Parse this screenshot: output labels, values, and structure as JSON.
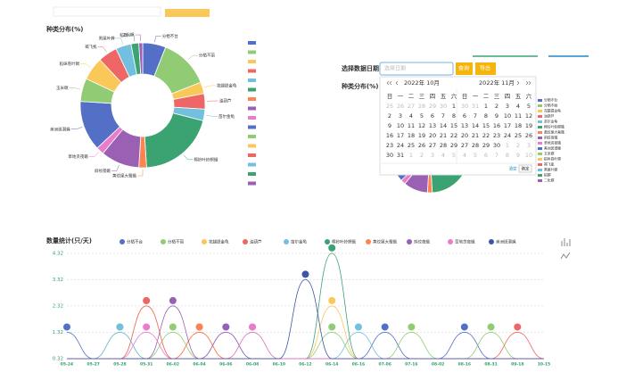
{
  "chart_data": [
    {
      "type": "donut",
      "title": "种类分布(%)",
      "categories": [
        "分栖不台",
        "分栖不丽",
        "花腿提金龟",
        "油葫芦",
        "苗尔金龟",
        "棉铃叶蛉螟蛾",
        "黄纹尾大蚕蛾",
        "斜纹夜蛾",
        "草地贪夜蛾",
        "美洲斑潜蝇",
        "玉米螟",
        "稻纵卷叶螟",
        "褐飞虱",
        "黑尾叶蝉",
        "稻螟",
        "二化螟"
      ],
      "values": [
        6,
        13,
        3,
        4,
        3,
        20,
        2,
        10,
        2,
        13,
        6,
        6,
        5,
        4,
        2,
        1
      ],
      "colors": [
        "#5470c6",
        "#91cc75",
        "#fac858",
        "#ee6666",
        "#73c0de",
        "#3ba272",
        "#fc8452",
        "#9a60b4",
        "#ea7ccc",
        "#5470c6",
        "#91cc75",
        "#fac858",
        "#ee6666",
        "#73c0de",
        "#3ba272",
        "#9a60b4"
      ]
    },
    {
      "type": "line",
      "title": "数量统计(只/天)",
      "categories": [
        "05-24",
        "05-27",
        "05-28",
        "05-31",
        "06-02",
        "06-04",
        "06-06",
        "06-08",
        "06-10",
        "06-12",
        "06-14",
        "06-16",
        "07-06",
        "07-16",
        "08-02",
        "08-16",
        "08-31",
        "09-18",
        "10-15"
      ],
      "ylim": [
        0.32,
        4.45
      ],
      "yticks": [
        0.32,
        1.32,
        2.32,
        3.32,
        4.32
      ],
      "grid": true,
      "series": [
        {
          "name": "分栖不台",
          "color": "#5470c6",
          "values": [
            1.32,
            0.32,
            0.32,
            0.32,
            0.32,
            0.32,
            0.32,
            0.32,
            0.32,
            0.32,
            0.32,
            0.32,
            1.32,
            0.32,
            0.32,
            1.32,
            0.32,
            0.32,
            0.32
          ]
        },
        {
          "name": "分栖不丽",
          "color": "#91cc75",
          "values": [
            0.32,
            0.32,
            1.32,
            0.32,
            1.32,
            0.32,
            0.32,
            1.32,
            0.32,
            0.32,
            1.32,
            0.32,
            0.32,
            1.32,
            0.32,
            0.32,
            1.32,
            0.32,
            0.32
          ]
        },
        {
          "name": "花腿提金龟",
          "color": "#fac858",
          "values": [
            0.32,
            0.32,
            0.32,
            2.32,
            0.32,
            0.32,
            0.32,
            0.32,
            0.32,
            0.32,
            2.32,
            0.32,
            0.32,
            0.32,
            0.32,
            0.32,
            0.32,
            0.32,
            0.32
          ]
        },
        {
          "name": "油葫芦",
          "color": "#ee6666",
          "values": [
            0.32,
            0.32,
            0.32,
            2.32,
            0.32,
            1.32,
            0.32,
            0.32,
            0.32,
            0.32,
            0.32,
            0.32,
            0.32,
            0.32,
            0.32,
            0.32,
            0.32,
            1.32,
            0.32
          ]
        },
        {
          "name": "苗尔金龟",
          "color": "#73c0de",
          "values": [
            0.32,
            0.32,
            1.32,
            0.32,
            0.32,
            0.32,
            1.32,
            0.32,
            0.32,
            0.32,
            0.32,
            1.32,
            0.32,
            0.32,
            0.32,
            0.32,
            0.32,
            0.32,
            0.32
          ]
        },
        {
          "name": "棉铃叶蛉螟蛾",
          "color": "#3ba272",
          "values": [
            0.32,
            0.32,
            0.32,
            0.32,
            0.32,
            0.32,
            0.32,
            0.32,
            0.32,
            0.32,
            4.32,
            0.32,
            0.32,
            0.32,
            0.32,
            0.32,
            0.32,
            0.32,
            0.32
          ]
        },
        {
          "name": "黄纹尾大蚕蛾",
          "color": "#fc8452",
          "values": [
            0.32,
            0.32,
            0.32,
            0.32,
            0.32,
            1.32,
            0.32,
            0.32,
            0.32,
            0.32,
            0.32,
            0.32,
            0.32,
            0.32,
            0.32,
            0.32,
            0.32,
            0.32,
            0.32
          ]
        },
        {
          "name": "斜纹夜蛾",
          "color": "#9a60b4",
          "values": [
            0.32,
            0.32,
            0.32,
            0.32,
            2.32,
            0.32,
            1.32,
            0.32,
            0.32,
            0.32,
            0.32,
            0.32,
            0.32,
            0.32,
            0.32,
            0.32,
            0.32,
            0.32,
            0.32
          ]
        },
        {
          "name": "草地贪夜蛾",
          "color": "#ea7ccc",
          "values": [
            0.32,
            0.32,
            0.32,
            1.32,
            0.32,
            0.32,
            0.32,
            1.32,
            0.32,
            0.32,
            0.32,
            0.32,
            0.32,
            0.32,
            0.32,
            0.32,
            0.32,
            0.32,
            0.32
          ]
        },
        {
          "name": "美洲斑潜蝇",
          "color": "#3d57a8",
          "values": [
            0.32,
            0.32,
            0.32,
            0.32,
            0.32,
            0.32,
            0.32,
            0.32,
            0.32,
            3.32,
            0.32,
            0.32,
            0.32,
            0.32,
            0.32,
            0.32,
            0.32,
            0.32,
            0.32
          ]
        }
      ]
    }
  ],
  "filter": {
    "label": "选择数据日期",
    "placeholder": "选择日期",
    "buttons": [
      "查询",
      "导出"
    ],
    "panel_title": "种类分布(%)"
  },
  "date_picker": {
    "weekdays": [
      "日",
      "一",
      "二",
      "三",
      "四",
      "五",
      "六"
    ],
    "months": [
      {
        "title": "2022年 10月",
        "days": [
          [
            25,
            26,
            27,
            28,
            29,
            30,
            1
          ],
          [
            2,
            3,
            4,
            5,
            6,
            7,
            8
          ],
          [
            9,
            10,
            11,
            12,
            13,
            14,
            15
          ],
          [
            16,
            17,
            18,
            19,
            20,
            21,
            22
          ],
          [
            23,
            24,
            25,
            26,
            27,
            28,
            29
          ],
          [
            30,
            31,
            1,
            2,
            3,
            4,
            5
          ]
        ]
      },
      {
        "title": "2022年 11月",
        "days": [
          [
            30,
            31,
            1,
            2,
            3,
            4,
            5
          ],
          [
            6,
            7,
            8,
            9,
            10,
            11,
            12
          ],
          [
            13,
            14,
            15,
            16,
            17,
            18,
            19
          ],
          [
            20,
            21,
            22,
            23,
            24,
            25,
            26
          ],
          [
            27,
            28,
            29,
            30,
            1,
            2,
            3
          ],
          [
            4,
            5,
            6,
            7,
            8,
            9,
            10
          ]
        ]
      }
    ],
    "buttons": [
      "清空",
      "确定"
    ]
  }
}
